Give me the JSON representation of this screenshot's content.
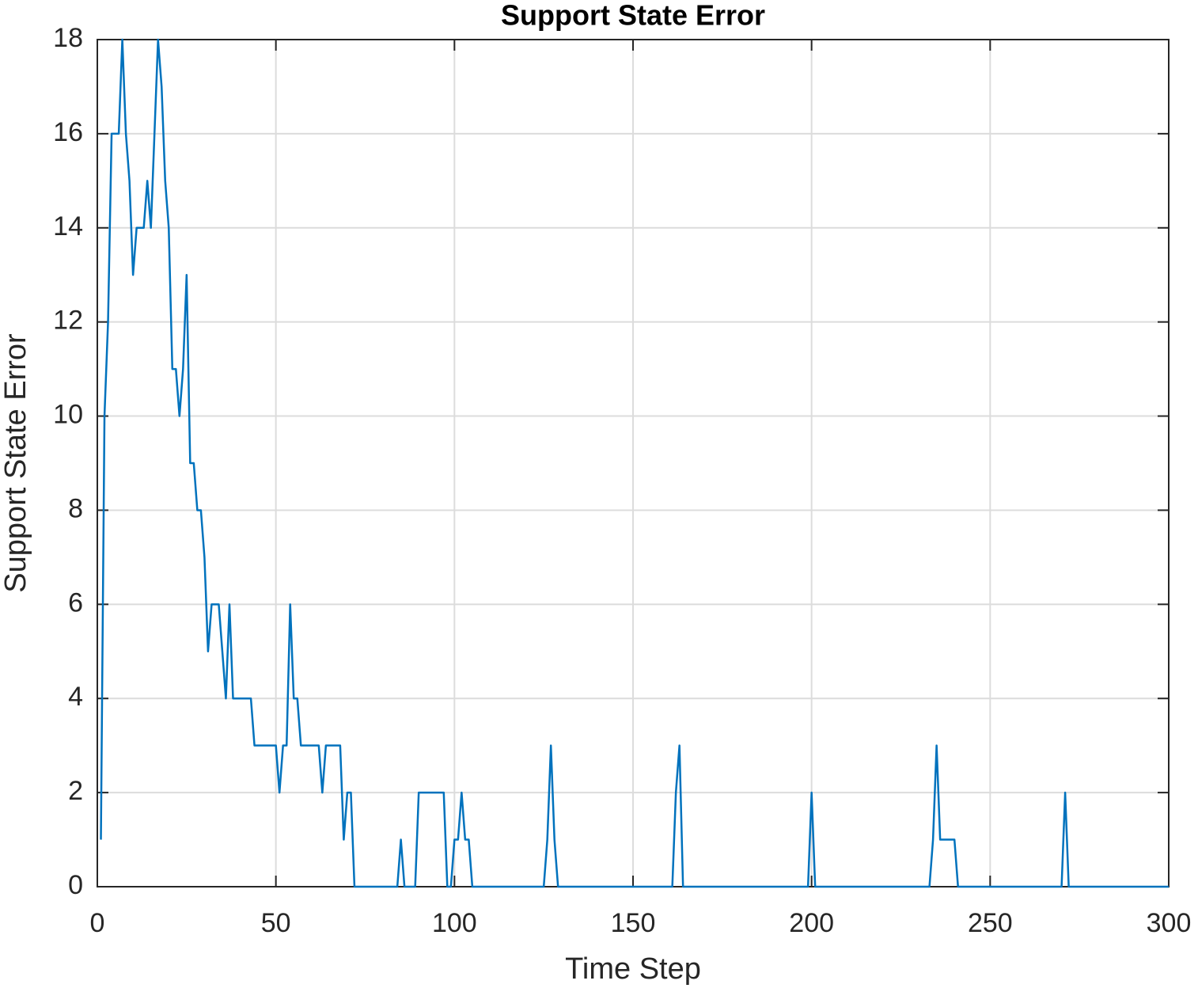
{
  "chart_data": {
    "type": "line",
    "title": "Support State Error",
    "x_label": "Time Step",
    "y_label": "Support State Error",
    "x": [
      1,
      2,
      3,
      4,
      6,
      7,
      8,
      9,
      10,
      11,
      13,
      14,
      15,
      16,
      17,
      18,
      19,
      20,
      21,
      22,
      23,
      24,
      25,
      26,
      27,
      28,
      29,
      30,
      31,
      32,
      34,
      35,
      36,
      37,
      38,
      43,
      44,
      50,
      51,
      52,
      53,
      54,
      55,
      56,
      57,
      62,
      63,
      64,
      68,
      69,
      70,
      71,
      72,
      84,
      85,
      86,
      89,
      90,
      97,
      98,
      99,
      100,
      101,
      102,
      103,
      104,
      105,
      125,
      126,
      127,
      128,
      129,
      161,
      162,
      163,
      164,
      199,
      200,
      201,
      233,
      234,
      235,
      236,
      240,
      241,
      270,
      271,
      272,
      300
    ],
    "series": [
      {
        "name": "Support State Error",
        "color": "#0072bd",
        "values": [
          1,
          10,
          12,
          16,
          16,
          18,
          16,
          15,
          13,
          14,
          14,
          15,
          14,
          16,
          18,
          17,
          15,
          14,
          11,
          11,
          10,
          11,
          13,
          9,
          9,
          8,
          8,
          7,
          5,
          6,
          6,
          5,
          4,
          6,
          4,
          4,
          3,
          3,
          2,
          3,
          3,
          6,
          4,
          4,
          3,
          3,
          2,
          3,
          3,
          1,
          2,
          2,
          0,
          0,
          1,
          0,
          0,
          2,
          2,
          0,
          0,
          1,
          1,
          2,
          1,
          1,
          0,
          0,
          1,
          3,
          1,
          0,
          0,
          2,
          3,
          0,
          0,
          2,
          0,
          0,
          1,
          3,
          1,
          1,
          0,
          0,
          2,
          0,
          0
        ]
      }
    ],
    "xlim": [
      0,
      300
    ],
    "ylim": [
      0,
      18
    ],
    "xticks": [
      0,
      50,
      100,
      150,
      200,
      250,
      300
    ],
    "yticks": [
      0,
      2,
      4,
      6,
      8,
      10,
      12,
      14,
      16,
      18
    ],
    "grid": true
  }
}
